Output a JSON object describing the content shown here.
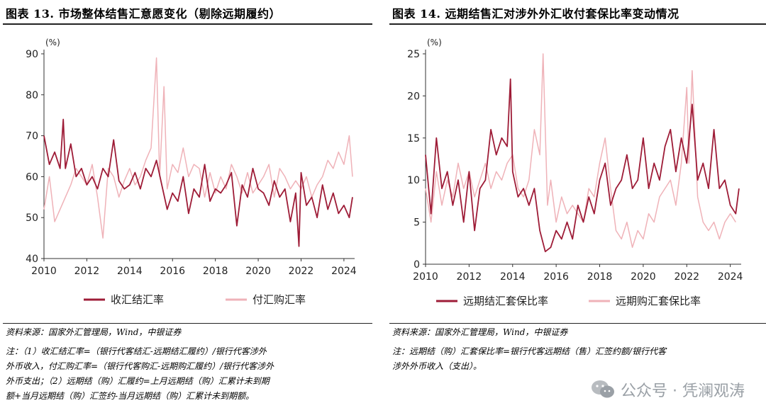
{
  "left": {
    "title": "图表 13. 市场整体结售汇意愿变化（剔除远期履约）",
    "source": "资料来源：国家外汇管理局，Wind，中银证券",
    "note": [
      "注：（1）收汇结汇率=（银行代客结汇-远期结汇履约）/银行代客涉外",
      "外币收入，付汇购汇率=（银行代客购汇-远期购汇履约）/银行代客涉外",
      "外币支出；（2）远期结（购）汇履约=上月远期结（购）汇累计未到期",
      "额+当月远期结（购）汇签约-当月远期结（购）汇累计未到期额。"
    ]
  },
  "right": {
    "title": "图表 14. 远期结售汇对涉外外汇收付套保比率变动情况",
    "source": "资料来源：国家外汇管理局，Wind，中银证券",
    "note": [
      "注：远期结（购）汇套保比率=银行代客远期结（售）汇签约额/银行代客",
      "涉外外币收入（支出）。"
    ]
  },
  "watermark": {
    "label": "公众号 · 凭澜观涛",
    "icon": "wechat-icon"
  },
  "colors": {
    "dark": "#9e1c37",
    "light": "#efb2b8",
    "axis": "#333333"
  },
  "chart_data": [
    {
      "type": "line",
      "unit_label": "(%)",
      "x_ticks": [
        "2010",
        "2012",
        "2014",
        "2016",
        "2018",
        "2020",
        "2022",
        "2024"
      ],
      "x_range": [
        2010,
        2024.5
      ],
      "ylim": [
        40,
        90
      ],
      "y_ticks": [
        40,
        50,
        60,
        70,
        80,
        90
      ],
      "series": [
        {
          "name": "收汇结汇率",
          "color": "#9e1c37",
          "t": [
            2010,
            2010.25,
            2010.5,
            2010.75,
            2010.9,
            2011.0,
            2011.25,
            2011.5,
            2011.75,
            2012,
            2012.25,
            2012.5,
            2012.75,
            2013,
            2013.25,
            2013.5,
            2013.75,
            2014,
            2014.25,
            2014.5,
            2014.75,
            2015,
            2015.25,
            2015.5,
            2015.75,
            2016,
            2016.25,
            2016.5,
            2016.75,
            2017,
            2017.25,
            2017.5,
            2017.75,
            2018,
            2018.25,
            2018.5,
            2018.75,
            2019,
            2019.25,
            2019.5,
            2019.75,
            2020,
            2020.25,
            2020.5,
            2020.75,
            2021,
            2021.25,
            2021.5,
            2021.75,
            2021.9,
            2022,
            2022.25,
            2022.5,
            2022.75,
            2023,
            2023.25,
            2023.5,
            2023.75,
            2024,
            2024.25,
            2024.4
          ],
          "v": [
            70,
            63,
            66,
            62,
            74,
            62,
            68,
            60,
            62,
            58,
            60,
            57,
            62,
            60,
            69,
            59,
            57,
            58,
            61,
            57,
            62,
            60,
            64,
            58,
            52,
            56,
            54,
            60,
            51,
            57,
            55,
            63,
            54,
            57,
            56,
            58,
            61,
            48,
            58,
            55,
            62,
            57,
            56,
            53,
            59,
            55,
            57,
            49,
            56,
            43,
            61,
            53,
            55,
            50,
            58,
            52,
            56,
            51,
            53,
            50,
            55
          ]
        },
        {
          "name": "付汇购汇率",
          "color": "#efb2b8",
          "t": [
            2010,
            2010.25,
            2010.5,
            2010.75,
            2011.0,
            2011.25,
            2011.5,
            2011.75,
            2012,
            2012.25,
            2012.5,
            2012.75,
            2013,
            2013.25,
            2013.5,
            2013.75,
            2014,
            2014.25,
            2014.5,
            2014.75,
            2015,
            2015.25,
            2015.4,
            2015.6,
            2015.75,
            2016,
            2016.25,
            2016.5,
            2016.75,
            2017,
            2017.25,
            2017.5,
            2017.75,
            2018,
            2018.25,
            2018.5,
            2018.75,
            2019,
            2019.25,
            2019.5,
            2019.75,
            2020,
            2020.25,
            2020.5,
            2020.75,
            2021,
            2021.25,
            2021.5,
            2021.75,
            2022,
            2022.25,
            2022.5,
            2022.75,
            2023,
            2023.25,
            2023.5,
            2023.75,
            2024,
            2024.25,
            2024.4
          ],
          "v": [
            52,
            60,
            49,
            52,
            55,
            58,
            62,
            60,
            58,
            63,
            55,
            45,
            62,
            60,
            55,
            59,
            62,
            58,
            60,
            64,
            67,
            89,
            60,
            82,
            57,
            63,
            61,
            67,
            60,
            63,
            62,
            55,
            61,
            56,
            60,
            57,
            63,
            60,
            56,
            61,
            56,
            58,
            60,
            63,
            55,
            62,
            60,
            57,
            59,
            57,
            60,
            55,
            58,
            60,
            64,
            62,
            66,
            63,
            70,
            60
          ]
        }
      ]
    },
    {
      "type": "line",
      "unit_label": "(%)",
      "x_ticks": [
        "2010",
        "2012",
        "2014",
        "2016",
        "2018",
        "2020",
        "2022",
        "2024"
      ],
      "x_range": [
        2010,
        2024.5
      ],
      "ylim": [
        0,
        25
      ],
      "y_ticks": [
        0,
        5,
        10,
        15,
        20,
        25
      ],
      "series": [
        {
          "name": "远期结汇套保比率",
          "color": "#9e1c37",
          "t": [
            2010,
            2010.25,
            2010.5,
            2010.75,
            2011,
            2011.25,
            2011.5,
            2011.75,
            2012,
            2012.25,
            2012.5,
            2012.75,
            2013,
            2013.25,
            2013.5,
            2013.75,
            2013.9,
            2014,
            2014.25,
            2014.5,
            2014.75,
            2015,
            2015.25,
            2015.5,
            2015.75,
            2016,
            2016.25,
            2016.5,
            2016.75,
            2017,
            2017.25,
            2017.5,
            2017.75,
            2018,
            2018.25,
            2018.5,
            2018.75,
            2019,
            2019.25,
            2019.5,
            2019.75,
            2020,
            2020.25,
            2020.5,
            2020.75,
            2021,
            2021.25,
            2021.5,
            2021.75,
            2022,
            2022.25,
            2022.5,
            2022.75,
            2023,
            2023.25,
            2023.5,
            2023.75,
            2024,
            2024.25,
            2024.4
          ],
          "v": [
            13,
            6,
            15,
            9,
            11,
            7,
            10,
            5,
            11,
            4,
            9,
            10,
            16,
            13,
            15,
            14,
            22,
            11,
            8,
            9,
            7,
            9,
            4,
            1.5,
            2,
            4,
            3,
            5,
            3,
            7,
            5,
            8,
            6,
            10,
            12,
            7,
            9,
            10,
            13,
            9,
            10,
            15,
            9,
            12,
            10,
            14,
            16,
            11,
            15,
            12,
            19,
            10,
            12,
            9,
            16,
            9,
            10,
            7,
            6,
            9
          ]
        },
        {
          "name": "远期购汇套保比率",
          "color": "#efb2b8",
          "t": [
            2010,
            2010.25,
            2010.5,
            2010.75,
            2011,
            2011.25,
            2011.5,
            2011.75,
            2012,
            2012.25,
            2012.5,
            2012.75,
            2013,
            2013.25,
            2013.5,
            2013.75,
            2014,
            2014.25,
            2014.5,
            2014.75,
            2015,
            2015.25,
            2015.4,
            2015.6,
            2015.75,
            2016,
            2016.25,
            2016.5,
            2016.75,
            2017,
            2017.25,
            2017.5,
            2017.75,
            2018,
            2018.25,
            2018.5,
            2018.75,
            2019,
            2019.25,
            2019.5,
            2019.75,
            2020,
            2020.25,
            2020.5,
            2020.75,
            2021,
            2021.25,
            2021.5,
            2021.75,
            2022,
            2022.1,
            2022.25,
            2022.5,
            2022.75,
            2023,
            2023.25,
            2023.5,
            2023.75,
            2024,
            2024.25,
            2024.4
          ],
          "v": [
            9,
            5,
            11,
            7,
            10,
            8,
            12,
            9,
            11,
            8,
            10,
            12,
            9,
            11,
            10,
            12,
            13,
            9,
            8,
            10,
            16,
            13,
            25,
            7,
            10,
            5,
            8,
            6,
            7,
            6,
            5,
            9,
            8,
            12,
            15,
            9,
            4,
            3,
            5,
            2,
            4,
            3,
            6,
            5,
            8,
            9,
            10,
            7,
            12,
            21,
            12,
            23,
            8,
            5,
            4,
            5,
            3,
            5,
            6,
            5
          ]
        }
      ]
    }
  ]
}
